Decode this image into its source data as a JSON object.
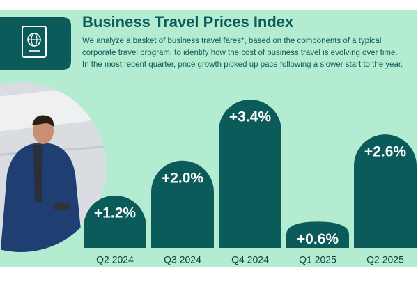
{
  "chart_data": {
    "type": "bar",
    "title": "Business Travel Prices Index",
    "description": [
      "We analyze a basket of business travel fares*, based on the components of a typical",
      "corporate travel program, to identify how the cost of business travel is evolving over time.",
      "In the most recent quarter, price growth picked up pace following a slower start to the year."
    ],
    "categories": [
      "Q2 2024",
      "Q3 2024",
      "Q4 2024",
      "Q1 2025",
      "Q2 2025"
    ],
    "values": [
      1.2,
      2.0,
      3.4,
      0.6,
      2.6
    ],
    "value_labels": [
      "+1.2%",
      "+2.0%",
      "+3.4%",
      "+0.6%",
      "+2.6%"
    ],
    "color": "#0c5b5b"
  }
}
